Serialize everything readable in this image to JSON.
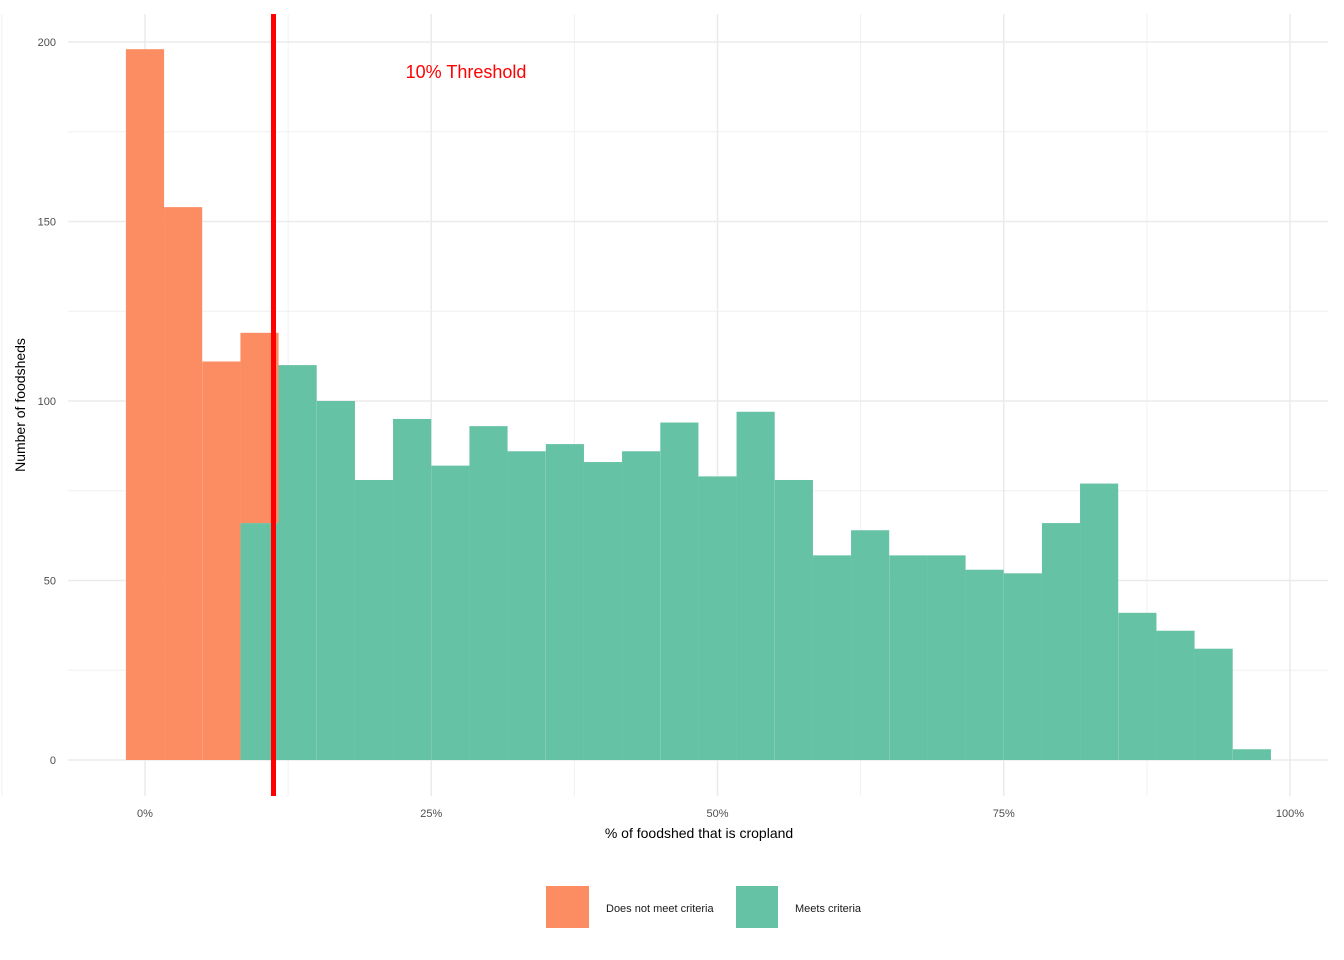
{
  "chart_data": {
    "type": "bar",
    "subtype": "stacked-histogram",
    "title": "",
    "xlabel": "% of foodshed that is cropland",
    "ylabel": "Number of foodsheds",
    "xlim": [
      -3.3,
      103
    ],
    "ylim": [
      -10,
      208
    ],
    "bin_width": 3.333,
    "x_ticks": [
      0,
      25,
      50,
      75,
      100
    ],
    "x_tick_labels": [
      "0%",
      "25%",
      "50%",
      "75%",
      "100%"
    ],
    "y_ticks": [
      0,
      50,
      100,
      150,
      200
    ],
    "y_tick_labels": [
      "0",
      "50",
      "100",
      "150",
      "200"
    ],
    "grid": true,
    "legend_position": "bottom",
    "threshold": {
      "x": 10,
      "label": "10% Threshold",
      "color": "#ff0000"
    },
    "series": [
      {
        "name": "Meets criteria",
        "color": "#66c2a5",
        "bins": [
          10,
          13.33,
          16.67,
          20,
          23.33,
          26.67,
          30,
          33.33,
          36.67,
          40,
          43.33,
          46.67,
          50,
          53.33,
          56.67,
          60,
          63.33,
          66.67,
          70,
          73.33,
          76.67,
          80,
          83.33,
          86.67,
          90,
          93.33,
          96.67
        ],
        "values": [
          66,
          110,
          100,
          78,
          95,
          82,
          93,
          86,
          88,
          83,
          86,
          94,
          79,
          97,
          78,
          57,
          64,
          57,
          57,
          53,
          52,
          66,
          77,
          41,
          36,
          31,
          3
        ]
      },
      {
        "name": "Does not meet criteria",
        "color": "#fc8d62",
        "bins": [
          0,
          3.33,
          6.67,
          10
        ],
        "values": [
          198,
          154,
          111,
          53
        ]
      }
    ],
    "legend": [
      "Does not meet criteria",
      "Meets criteria"
    ]
  }
}
